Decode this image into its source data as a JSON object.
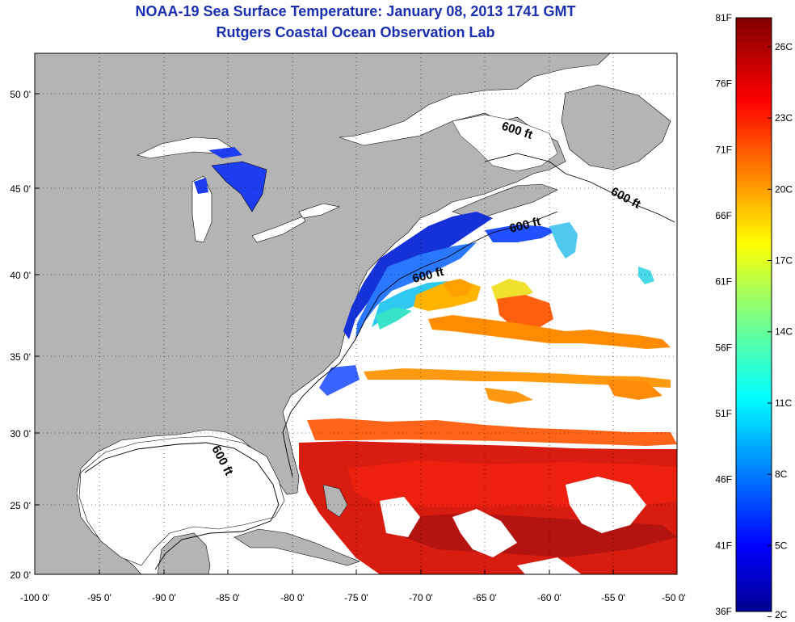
{
  "header": {
    "title": "NOAA-19 Sea Surface Temperature:  January 08, 2013 1741 GMT",
    "subtitle": "Rutgers Coastal Ocean Observation Lab"
  },
  "map": {
    "lon_range": [
      -100,
      -50
    ],
    "lat_range": [
      20,
      52.5
    ],
    "lat_ticks": [
      "20 0'",
      "25 0'",
      "30 0'",
      "35 0'",
      "40 0'",
      "45 0'",
      "50 0'"
    ],
    "lon_ticks": [
      "-100 0'",
      "-95 0'",
      "-90 0'",
      "-85 0'",
      "-80 0'",
      "-75 0'",
      "-70 0'",
      "-65 0'",
      "-60 0'",
      "-55 0'",
      "-50 0'"
    ],
    "isobath_labels": [
      "600 ft",
      "600 ft",
      "600 ft",
      "600 ft",
      "600 ft"
    ],
    "grid": "dotted",
    "colors": {
      "land": "#b4b4b4",
      "ocean_nodata": "#ffffff"
    }
  },
  "colorbar": {
    "f_labels": [
      "81F",
      "76F",
      "71F",
      "66F",
      "61F",
      "56F",
      "51F",
      "46F",
      "41F",
      "36F"
    ],
    "f_values": [
      81,
      76,
      71,
      66,
      61,
      56,
      51,
      46,
      41,
      36
    ],
    "c_labels": [
      "26C",
      "23C",
      "20C",
      "17C",
      "14C",
      "11C",
      "8C",
      "5C",
      "2C"
    ],
    "c_values": [
      26,
      23,
      20,
      17,
      14,
      11,
      8,
      5,
      2
    ],
    "range_f": [
      36,
      81
    ],
    "colormap": "jet"
  }
}
